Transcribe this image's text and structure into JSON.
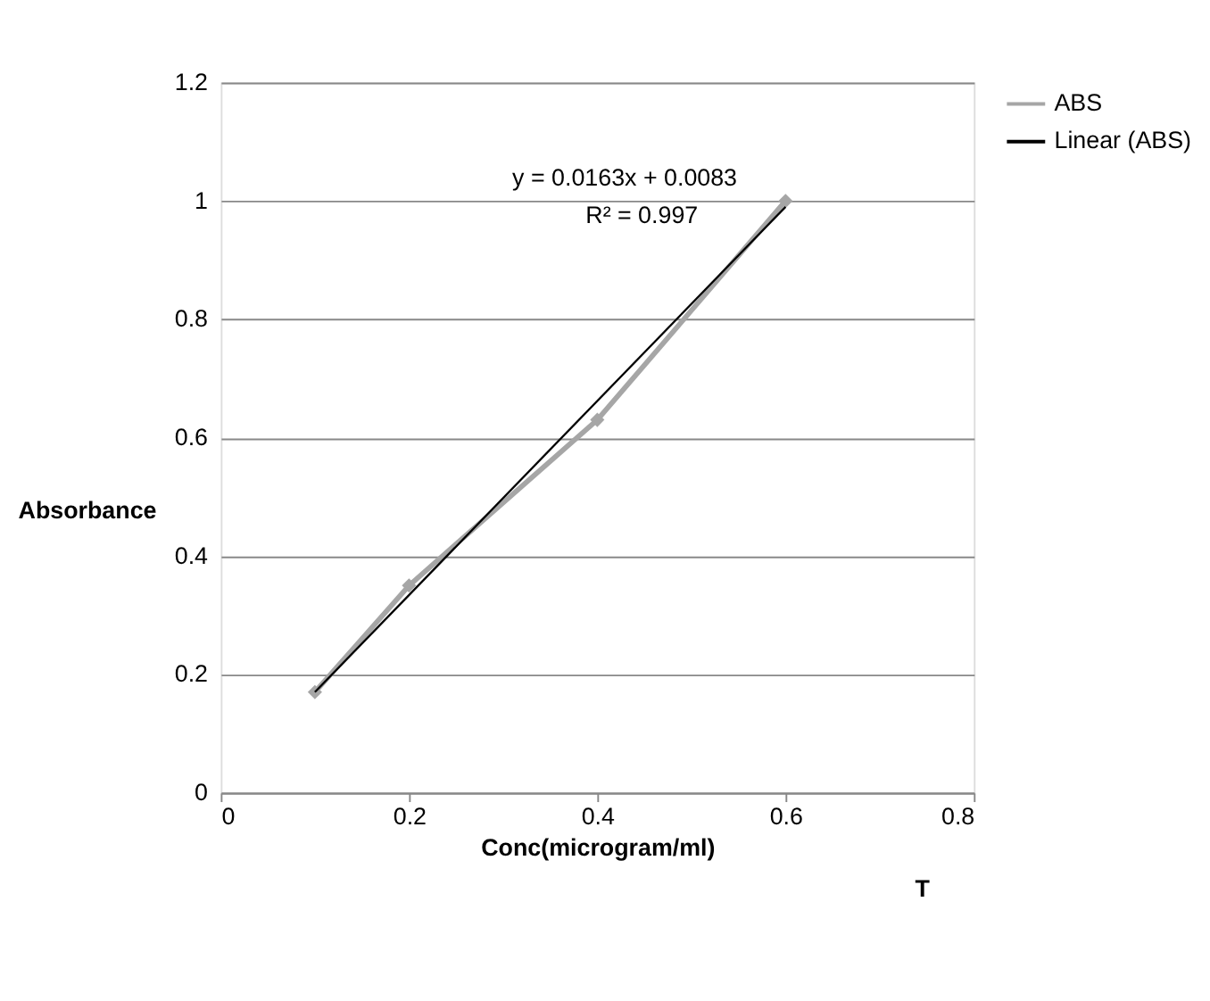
{
  "chart_data": {
    "type": "line",
    "xlabel": "Conc(microgram/ml)",
    "ylabel": "Absorbance",
    "x": [
      0.1,
      0.2,
      0.4,
      0.6
    ],
    "series": [
      {
        "name": "ABS",
        "color": "#a6a6a6",
        "values": [
          0.17,
          0.35,
          0.63,
          1.0
        ],
        "marker": "diamond"
      },
      {
        "name": "Linear (ABS)",
        "color": "#000000",
        "x": [
          0.1,
          0.6
        ],
        "values": [
          0.17,
          0.99
        ],
        "marker": "none"
      }
    ],
    "xlim": [
      0,
      0.8
    ],
    "xticks": [
      0,
      0.2,
      0.4,
      0.6,
      0.8
    ],
    "ylim": [
      0,
      1.2
    ],
    "yticks": [
      0,
      0.2,
      0.4,
      0.6,
      0.8,
      1,
      1.2
    ],
    "grid": "y",
    "legend": "right",
    "annotations": [
      "y = 0.0163x + 0.0083",
      "R² = 0.997",
      "T"
    ]
  }
}
